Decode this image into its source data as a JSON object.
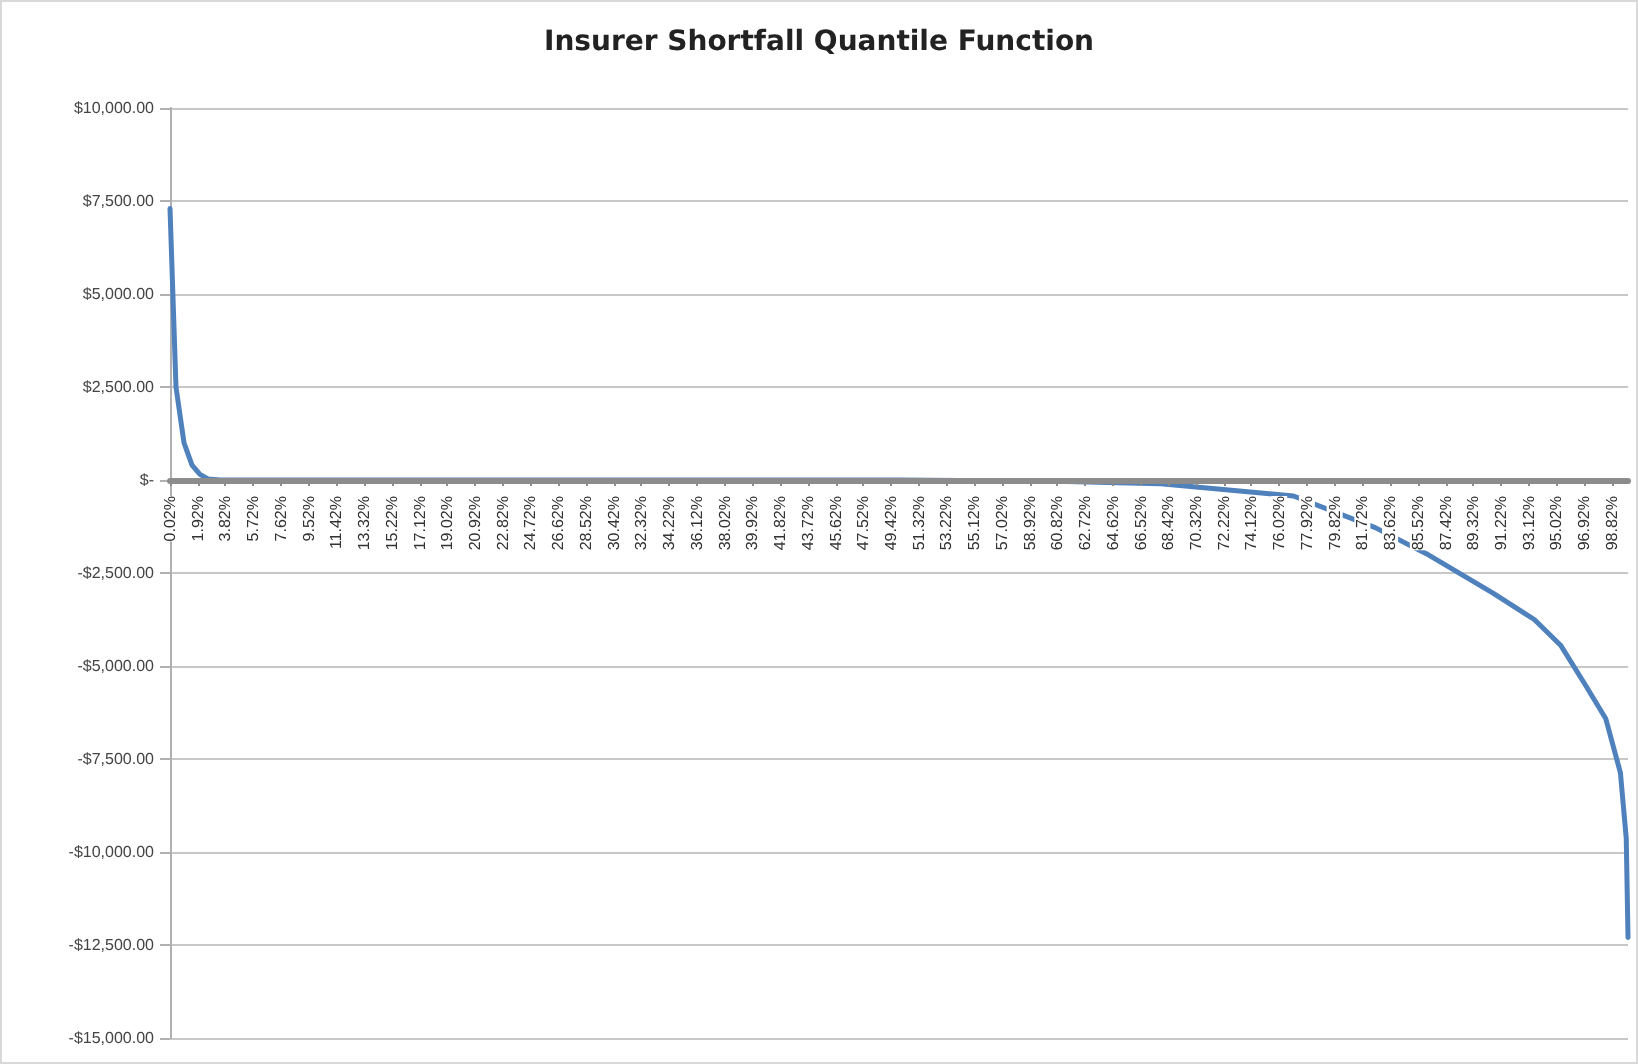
{
  "chart_data": {
    "type": "line",
    "title": "Insurer Shortfall Quantile Function",
    "x": [
      0.02,
      0.43,
      0.98,
      1.53,
      2.07,
      2.62,
      3.45,
      20,
      40,
      50,
      60,
      67.9,
      72,
      77,
      82.6,
      86.1,
      90.7,
      93.5,
      95.3,
      97,
      98.4,
      99.4,
      99.8,
      99.92
    ],
    "series": [
      {
        "color": "#4f81bd",
        "values": [
          7300,
          2500,
          1000,
          400,
          150,
          30,
          0,
          0,
          0,
          0,
          -30,
          -100,
          -250,
          -430,
          -1280,
          -1980,
          -3050,
          -3750,
          -4440,
          -5510,
          -6420,
          -7870,
          -9630,
          -12300
        ]
      }
    ],
    "xlim": [
      0.02,
      99.92
    ],
    "xticks": [
      {
        "value": 0.02,
        "label": "0.02%"
      },
      {
        "value": 1.92,
        "label": "1.92%"
      },
      {
        "value": 3.82,
        "label": "3.82%"
      },
      {
        "value": 5.72,
        "label": "5.72%"
      },
      {
        "value": 7.62,
        "label": "7.62%"
      },
      {
        "value": 9.52,
        "label": "9.52%"
      },
      {
        "value": 11.42,
        "label": "11.42%"
      },
      {
        "value": 13.32,
        "label": "13.32%"
      },
      {
        "value": 15.22,
        "label": "15.22%"
      },
      {
        "value": 17.12,
        "label": "17.12%"
      },
      {
        "value": 19.02,
        "label": "19.02%"
      },
      {
        "value": 20.92,
        "label": "20.92%"
      },
      {
        "value": 22.82,
        "label": "22.82%"
      },
      {
        "value": 24.72,
        "label": "24.72%"
      },
      {
        "value": 26.62,
        "label": "26.62%"
      },
      {
        "value": 28.52,
        "label": "28.52%"
      },
      {
        "value": 30.42,
        "label": "30.42%"
      },
      {
        "value": 32.32,
        "label": "32.32%"
      },
      {
        "value": 34.22,
        "label": "34.22%"
      },
      {
        "value": 36.12,
        "label": "36.12%"
      },
      {
        "value": 38.02,
        "label": "38.02%"
      },
      {
        "value": 39.92,
        "label": "39.92%"
      },
      {
        "value": 41.82,
        "label": "41.82%"
      },
      {
        "value": 43.72,
        "label": "43.72%"
      },
      {
        "value": 45.62,
        "label": "45.62%"
      },
      {
        "value": 47.52,
        "label": "47.52%"
      },
      {
        "value": 49.42,
        "label": "49.42%"
      },
      {
        "value": 51.32,
        "label": "51.32%"
      },
      {
        "value": 53.22,
        "label": "53.22%"
      },
      {
        "value": 55.12,
        "label": "55.12%"
      },
      {
        "value": 57.02,
        "label": "57.02%"
      },
      {
        "value": 58.92,
        "label": "58.92%"
      },
      {
        "value": 60.82,
        "label": "60.82%"
      },
      {
        "value": 62.72,
        "label": "62.72%"
      },
      {
        "value": 64.62,
        "label": "64.62%"
      },
      {
        "value": 66.52,
        "label": "66.52%"
      },
      {
        "value": 68.42,
        "label": "68.42%"
      },
      {
        "value": 70.32,
        "label": "70.32%"
      },
      {
        "value": 72.22,
        "label": "72.22%"
      },
      {
        "value": 74.12,
        "label": "74.12%"
      },
      {
        "value": 76.02,
        "label": "76.02%"
      },
      {
        "value": 77.92,
        "label": "77.92%"
      },
      {
        "value": 79.82,
        "label": "79.82%"
      },
      {
        "value": 81.72,
        "label": "81.72%"
      },
      {
        "value": 83.62,
        "label": "83.62%"
      },
      {
        "value": 85.52,
        "label": "85.52%"
      },
      {
        "value": 87.42,
        "label": "87.42%"
      },
      {
        "value": 89.32,
        "label": "89.32%"
      },
      {
        "value": 91.22,
        "label": "91.22%"
      },
      {
        "value": 93.12,
        "label": "93.12%"
      },
      {
        "value": 95.02,
        "label": "95.02%"
      },
      {
        "value": 96.92,
        "label": "96.92%"
      },
      {
        "value": 98.82,
        "label": "98.82%"
      }
    ],
    "ylim": [
      -15000,
      10000
    ],
    "yticks": [
      {
        "value": -15000,
        "label": "-$15,000.00"
      },
      {
        "value": -12500,
        "label": "-$12,500.00"
      },
      {
        "value": -10000,
        "label": "-$10,000.00"
      },
      {
        "value": -7500,
        "label": "-$7,500.00"
      },
      {
        "value": -5000,
        "label": "-$5,000.00"
      },
      {
        "value": -2500,
        "label": "-$2,500.00"
      },
      {
        "value": 0,
        "label": "$-"
      },
      {
        "value": 2500,
        "label": "$2,500.00"
      },
      {
        "value": 5000,
        "label": "$5,000.00"
      },
      {
        "value": 7500,
        "label": "$7,500.00"
      },
      {
        "value": 10000,
        "label": "$10,000.00"
      }
    ],
    "grid": "y",
    "marker": "none",
    "line_style": "solid"
  }
}
